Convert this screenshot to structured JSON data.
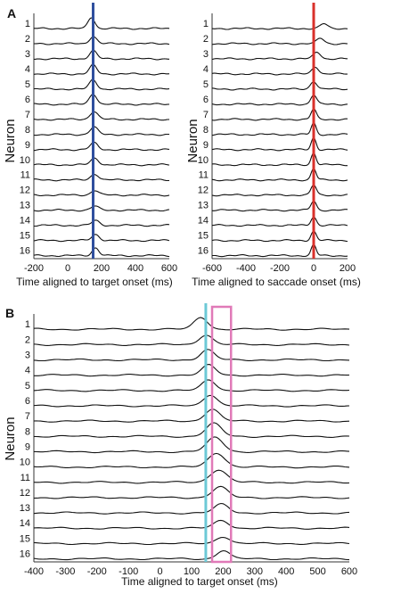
{
  "panels": [
    {
      "letter": "A",
      "ylabel": "Neuron",
      "xlabel": "Time aligned to target onset (ms)",
      "neuron_labels": [
        "1",
        "2",
        "3",
        "4",
        "5",
        "6",
        "7",
        "8",
        "9",
        "10",
        "11",
        "12",
        "13",
        "14",
        "15",
        "16"
      ],
      "marker": {
        "color": "#2f4f9e"
      }
    },
    {
      "letter": "",
      "ylabel": "",
      "xlabel": "Time aligned to saccade onset (ms)",
      "neuron_labels": [
        "1",
        "2",
        "3",
        "4",
        "5",
        "6",
        "7",
        "8",
        "9",
        "10",
        "11",
        "12",
        "13",
        "14",
        "15",
        "16"
      ],
      "marker": {
        "color": "#d9312b"
      }
    },
    {
      "letter": "B",
      "ylabel": "Neuron",
      "xlabel": "Time aligned to target onset (ms)",
      "neuron_labels": [
        "1",
        "2",
        "3",
        "4",
        "5",
        "6",
        "7",
        "8",
        "9",
        "10",
        "11",
        "12",
        "13",
        "14",
        "15",
        "16"
      ],
      "marker": {
        "color": "#6cc9d6"
      },
      "window": {
        "color": "#e07ab8"
      }
    }
  ],
  "chart_data": [
    {
      "type": "line",
      "panel": "A",
      "xlabel": "Time aligned to target onset (ms)",
      "ylabel": "Neuron",
      "xlim": [
        -200,
        600
      ],
      "xticks": [
        -200,
        0,
        200,
        400,
        600
      ],
      "marker_line": {
        "x": 150,
        "color": "#2f4f9e"
      },
      "series": [
        {
          "name": "1",
          "peak_x": 140,
          "peak": 0.85,
          "width": 28
        },
        {
          "name": "2",
          "peak_x": 150,
          "peak": 0.55,
          "width": 30
        },
        {
          "name": "3",
          "peak_x": 150,
          "peak": 0.6,
          "width": 30
        },
        {
          "name": "4",
          "peak_x": 150,
          "peak": 0.65,
          "width": 30
        },
        {
          "name": "5",
          "peak_x": 150,
          "peak": 0.7,
          "width": 30
        },
        {
          "name": "6",
          "peak_x": 150,
          "peak": 0.8,
          "width": 30
        },
        {
          "name": "7",
          "peak_x": 155,
          "peak": 0.6,
          "width": 32
        },
        {
          "name": "8",
          "peak_x": 155,
          "peak": 0.55,
          "width": 32
        },
        {
          "name": "9",
          "peak_x": 155,
          "peak": 0.5,
          "width": 32
        },
        {
          "name": "10",
          "peak_x": 160,
          "peak": 0.5,
          "width": 32
        },
        {
          "name": "11",
          "peak_x": 160,
          "peak": 0.45,
          "width": 32
        },
        {
          "name": "12",
          "peak_x": 160,
          "peak": 0.35,
          "width": 32
        },
        {
          "name": "13",
          "peak_x": 160,
          "peak": 0.3,
          "width": 32
        },
        {
          "name": "14",
          "peak_x": 165,
          "peak": 0.35,
          "width": 32
        },
        {
          "name": "15",
          "peak_x": 165,
          "peak": 0.45,
          "width": 32
        },
        {
          "name": "16",
          "peak_x": 165,
          "peak": 0.6,
          "width": 28
        }
      ]
    },
    {
      "type": "line",
      "panel": "A-right",
      "xlabel": "Time aligned to saccade onset (ms)",
      "ylabel": "",
      "xlim": [
        -600,
        200
      ],
      "xticks": [
        -600,
        -400,
        -200,
        0,
        200
      ],
      "marker_line": {
        "x": 0,
        "color": "#d9312b"
      },
      "series": [
        {
          "name": "1",
          "peak_x": 60,
          "peak": 0.35,
          "width": 30
        },
        {
          "name": "2",
          "peak_x": 40,
          "peak": 0.4,
          "width": 30
        },
        {
          "name": "3",
          "peak_x": 20,
          "peak": 0.5,
          "width": 30
        },
        {
          "name": "4",
          "peak_x": 10,
          "peak": 0.55,
          "width": 28
        },
        {
          "name": "5",
          "peak_x": 0,
          "peak": 0.6,
          "width": 26
        },
        {
          "name": "6",
          "peak_x": 0,
          "peak": 0.7,
          "width": 24
        },
        {
          "name": "7",
          "peak_x": 0,
          "peak": 0.75,
          "width": 22
        },
        {
          "name": "8",
          "peak_x": 0,
          "peak": 0.85,
          "width": 20
        },
        {
          "name": "9",
          "peak_x": 0,
          "peak": 0.9,
          "width": 20
        },
        {
          "name": "10",
          "peak_x": 0,
          "peak": 0.9,
          "width": 20
        },
        {
          "name": "11",
          "peak_x": 0,
          "peak": 0.85,
          "width": 20
        },
        {
          "name": "12",
          "peak_x": 0,
          "peak": 0.75,
          "width": 22
        },
        {
          "name": "13",
          "peak_x": 0,
          "peak": 0.7,
          "width": 22
        },
        {
          "name": "14",
          "peak_x": 0,
          "peak": 0.65,
          "width": 22
        },
        {
          "name": "15",
          "peak_x": 0,
          "peak": 0.7,
          "width": 22
        },
        {
          "name": "16",
          "peak_x": 0,
          "peak": 0.8,
          "width": 20
        }
      ]
    },
    {
      "type": "line",
      "panel": "B",
      "xlabel": "Time aligned to target onset (ms)",
      "ylabel": "Neuron",
      "xlim": [
        -400,
        600
      ],
      "xticks": [
        -400,
        -300,
        -200,
        -100,
        0,
        100,
        200,
        300,
        400,
        500,
        600
      ],
      "marker_line": {
        "x": 145,
        "color": "#6cc9d6"
      },
      "window": {
        "x": [
          165,
          225
        ],
        "color": "#e07ab8"
      },
      "series": [
        {
          "name": "1",
          "peak_x": 130,
          "peak": 0.85,
          "width": 30
        },
        {
          "name": "2",
          "peak_x": 145,
          "peak": 0.7,
          "width": 30
        },
        {
          "name": "3",
          "peak_x": 150,
          "peak": 0.7,
          "width": 30
        },
        {
          "name": "4",
          "peak_x": 155,
          "peak": 0.7,
          "width": 30
        },
        {
          "name": "5",
          "peak_x": 155,
          "peak": 0.75,
          "width": 30
        },
        {
          "name": "6",
          "peak_x": 160,
          "peak": 0.8,
          "width": 30
        },
        {
          "name": "7",
          "peak_x": 165,
          "peak": 0.85,
          "width": 32
        },
        {
          "name": "8",
          "peak_x": 170,
          "peak": 0.9,
          "width": 34
        },
        {
          "name": "9",
          "peak_x": 175,
          "peak": 1.0,
          "width": 36
        },
        {
          "name": "10",
          "peak_x": 180,
          "peak": 1.0,
          "width": 36
        },
        {
          "name": "11",
          "peak_x": 185,
          "peak": 0.9,
          "width": 36
        },
        {
          "name": "12",
          "peak_x": 190,
          "peak": 0.75,
          "width": 34
        },
        {
          "name": "13",
          "peak_x": 195,
          "peak": 0.6,
          "width": 32
        },
        {
          "name": "14",
          "peak_x": 195,
          "peak": 0.55,
          "width": 32
        },
        {
          "name": "15",
          "peak_x": 200,
          "peak": 0.5,
          "width": 30
        },
        {
          "name": "16",
          "peak_x": 200,
          "peak": 0.6,
          "width": 28
        }
      ]
    }
  ]
}
